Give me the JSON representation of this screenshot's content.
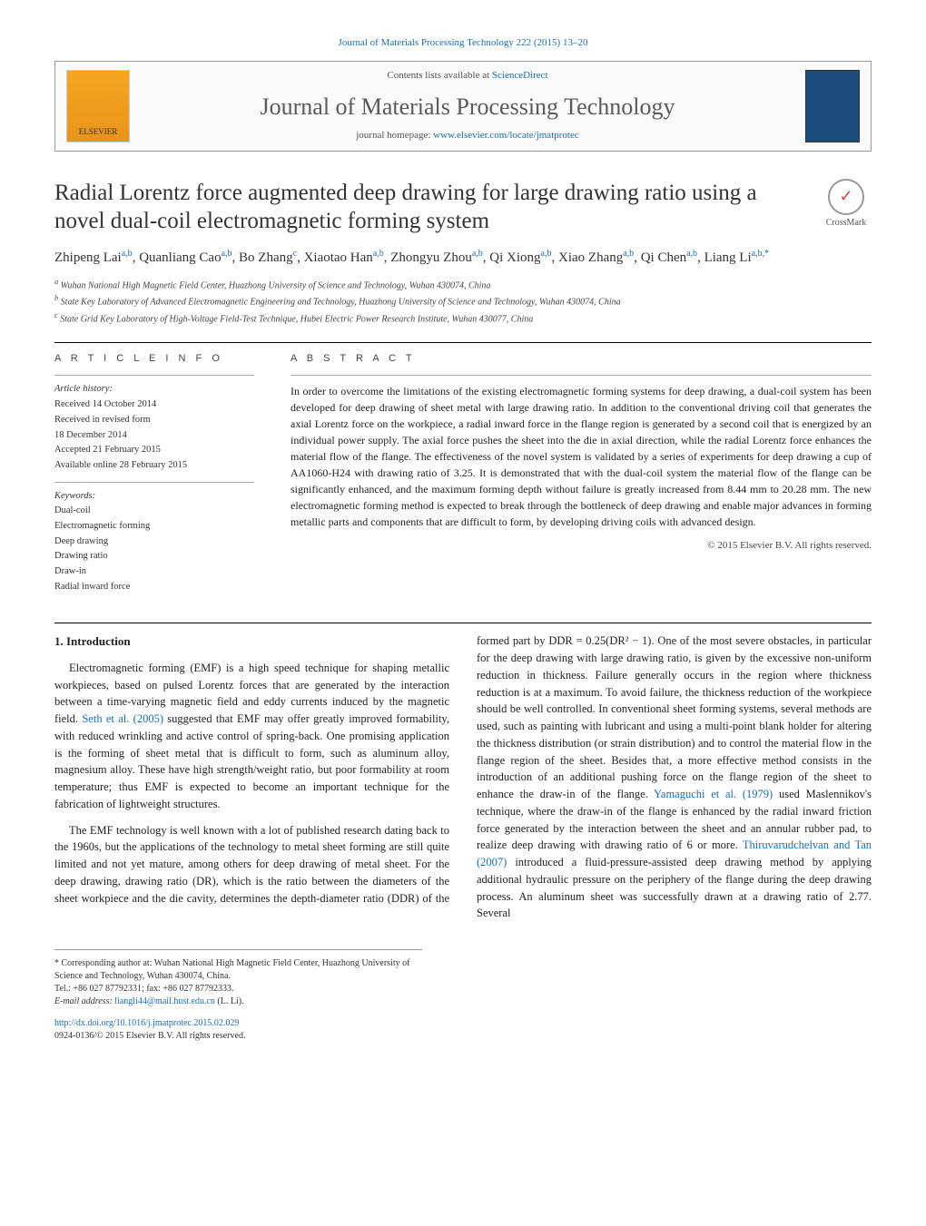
{
  "header": {
    "citation_link": "Journal of Materials Processing Technology 222 (2015) 13–20",
    "contents_prefix": "Contents lists available at ",
    "contents_link": "ScienceDirect",
    "journal_name": "Journal of Materials Processing Technology",
    "homepage_prefix": "journal homepage: ",
    "homepage_link": "www.elsevier.com/locate/jmatprotec",
    "elsevier_label": "ELSEVIER"
  },
  "title": "Radial Lorentz force augmented deep drawing for large drawing ratio using a novel dual-coil electromagnetic forming system",
  "crossmark_label": "CrossMark",
  "authors_html": "Zhipeng Lai<sup>a,b</sup>, Quanliang Cao<sup>a,b</sup>, Bo Zhang<sup>c</sup>, Xiaotao Han<sup>a,b</sup>, Zhongyu Zhou<sup>a,b</sup>, Qi Xiong<sup>a,b</sup>, Xiao Zhang<sup>a,b</sup>, Qi Chen<sup>a,b</sup>, Liang Li<sup>a,b,*</sup>",
  "affiliations": [
    "a Wuhan National High Magnetic Field Center, Huazhong University of Science and Technology, Wuhan 430074, China",
    "b State Key Laboratory of Advanced Electromagnetic Engineering and Technology, Huazhong University of Science and Technology, Wuhan 430074, China",
    "c State Grid Key Laboratory of High-Voltage Field-Test Technique, Hubei Electric Power Research Institute, Wuhan 430077, China"
  ],
  "article_info": {
    "heading": "A R T I C L E   I N F O",
    "history_label": "Article history:",
    "history": [
      "Received 14 October 2014",
      "Received in revised form",
      "18 December 2014",
      "Accepted 21 February 2015",
      "Available online 28 February 2015"
    ],
    "keywords_label": "Keywords:",
    "keywords": [
      "Dual-coil",
      "Electromagnetic forming",
      "Deep drawing",
      "Drawing ratio",
      "Draw-in",
      "Radial inward force"
    ]
  },
  "abstract": {
    "heading": "A B S T R A C T",
    "text": "In order to overcome the limitations of the existing electromagnetic forming systems for deep drawing, a dual-coil system has been developed for deep drawing of sheet metal with large drawing ratio. In addition to the conventional driving coil that generates the axial Lorentz force on the workpiece, a radial inward force in the flange region is generated by a second coil that is energized by an individual power supply. The axial force pushes the sheet into the die in axial direction, while the radial Lorentz force enhances the material flow of the flange. The effectiveness of the novel system is validated by a series of experiments for deep drawing a cup of AA1060-H24 with drawing ratio of 3.25. It is demonstrated that with the dual-coil system the material flow of the flange can be significantly enhanced, and the maximum forming depth without failure is greatly increased from 8.44 mm to 20.28 mm. The new electromagnetic forming method is expected to break through the bottleneck of deep drawing and enable major advances in forming metallic parts and components that are difficult to form, by developing driving coils with advanced design.",
    "copyright": "© 2015 Elsevier B.V. All rights reserved."
  },
  "section1": {
    "heading": "1. Introduction",
    "p1": "Electromagnetic forming (EMF) is a high speed technique for shaping metallic workpieces, based on pulsed Lorentz forces that are generated by the interaction between a time-varying magnetic field and eddy currents induced by the magnetic field. ",
    "p1_link": "Seth et al. (2005)",
    "p1_after": " suggested that EMF may offer greatly improved formability, with reduced wrinkling and active control of spring-back. One promising application is the forming of sheet metal that is difficult to form, such as aluminum alloy, magnesium alloy. These have high strength/weight ratio, but poor formability at room temperature; thus EMF is expected to become an important technique for the fabrication of lightweight structures.",
    "p2": "The EMF technology is well known with a lot of published research dating back to the 1960s, but the applications of the technology to metal sheet forming are still quite limited and not yet mature, among others for deep drawing of metal sheet. For the deep drawing, drawing ratio (DR), which is the ratio between the diameters of the sheet workpiece and the die cavity, determines the depth-diameter ratio (DDR) of the formed part by DDR = 0.25(DR² − 1). One of the most severe obstacles, in particular for the deep drawing with large drawing ratio, is given by the excessive non-uniform reduction in thickness. Failure generally occurs in the region where thickness reduction is at a maximum. To avoid failure, the thickness reduction of the workpiece should be well controlled. In conventional sheet forming systems, several methods are used, such as painting with lubricant and using a multi-point blank holder for altering the thickness distribution (or strain distribution) and to control the material flow in the flange region of the sheet. Besides that, a more effective method consists in the introduction of an additional pushing force on the flange region of the sheet to enhance the draw-in of the flange. ",
    "p2_link1": "Yamaguchi et al. (1979)",
    "p2_mid": " used Maslennikov's technique, where the draw-in of the flange is enhanced by the radial inward friction force generated by the interaction between the sheet and an annular rubber pad, to realize deep drawing with drawing ratio of 6 or more. ",
    "p2_link2": "Thiruvarudchelvan and Tan (2007)",
    "p2_end": " introduced a fluid-pressure-assisted deep drawing method by applying additional hydraulic pressure on the periphery of the flange during the deep drawing process. An aluminum sheet was successfully drawn at a drawing ratio of 2.77. Several"
  },
  "footer": {
    "corr_prefix": "* Corresponding author at: Wuhan National High Magnetic Field Center, Huazhong University of Science and Technology, Wuhan 430074, China.",
    "tel": "Tel.: +86 027 87792331; fax: +86 027 87792333.",
    "email_label": "E-mail address: ",
    "email": "liangli44@mail.hust.edu.cn",
    "email_after": " (L. Li).",
    "doi_link": "http://dx.doi.org/10.1016/j.jmatprotec.2015.02.029",
    "issn_line": "0924-0136/© 2015 Elsevier B.V. All rights reserved."
  },
  "colors": {
    "link": "#1a6db5",
    "text": "#222222",
    "muted": "#555555",
    "rule": "#000000"
  }
}
